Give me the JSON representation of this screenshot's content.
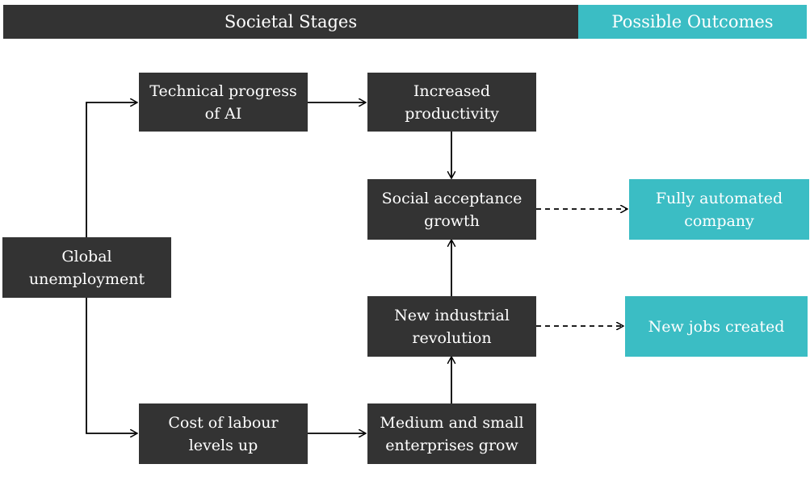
{
  "header": {
    "stages_label": "Societal Stages",
    "outcomes_label": "Possible Outcomes"
  },
  "nodes": {
    "global_unemployment": "Global\nunemployment",
    "technical_progress": "Technical progress\nof AI",
    "increased_productivity": "Increased\nproductivity",
    "social_acceptance": "Social acceptance\ngrowth",
    "new_industrial_revolution": "New industrial\nrevolution",
    "cost_of_labour": "Cost of labour\nlevels up",
    "medium_small_enterprises": "Medium and small\nenterprises grow"
  },
  "outcomes": {
    "fully_automated": "Fully automated\ncompany",
    "new_jobs": "New jobs created"
  },
  "colors": {
    "dark": "#333333",
    "teal": "#3bbdc4"
  }
}
